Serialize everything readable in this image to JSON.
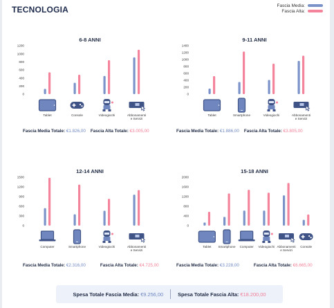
{
  "title": "TECNOLOGIA",
  "legend": {
    "media": "Fascia Media:",
    "alta": "Fascia Alta:"
  },
  "colors": {
    "media": "#7b93c9",
    "alta": "#f4849b",
    "text": "#1f2a44"
  },
  "chart_data": [
    {
      "type": "bar",
      "title": "6-8 ANNI",
      "categories": [
        "Tablet",
        "Console",
        "Videogiochi",
        "Abbonamenti e Servizi"
      ],
      "icons": [
        "tablet-icon",
        "gamepad-icon",
        "videogame-icon",
        "subscription-icon"
      ],
      "yticks": [
        0,
        200,
        400,
        600,
        800,
        1000,
        1200
      ],
      "ylim": [
        0,
        1200
      ],
      "series": [
        {
          "name": "Fascia Media",
          "values": [
            130,
            280,
            450,
            910
          ]
        },
        {
          "name": "Fascia Alta",
          "values": [
            540,
            480,
            840,
            1100
          ]
        }
      ]
    },
    {
      "type": "bar",
      "title": "9-11 ANNI",
      "categories": [
        "Tablet",
        "Smartphone",
        "Videogiochi",
        "Abbonamenti e Servizi"
      ],
      "icons": [
        "tablet-icon",
        "smartphone-icon",
        "videogame-icon",
        "subscription-icon"
      ],
      "yticks": [
        0,
        200,
        400,
        600,
        800,
        1000,
        1200,
        1400
      ],
      "ylim": [
        0,
        1400
      ],
      "series": [
        {
          "name": "Fascia Media",
          "values": [
            160,
            350,
            410,
            960
          ]
        },
        {
          "name": "Fascia Alta",
          "values": [
            520,
            1230,
            880,
            1110
          ]
        }
      ]
    },
    {
      "type": "bar",
      "title": "12-14 ANNI",
      "categories": [
        "Computer",
        "Smartphone",
        "Videogiochi",
        "Abbonamenti e Servizi"
      ],
      "icons": [
        "laptop-icon",
        "smartphone-icon",
        "videogame-icon",
        "subscription-icon"
      ],
      "yticks": [
        0,
        300,
        600,
        900,
        1200,
        1500
      ],
      "ylim": [
        0,
        1500
      ],
      "series": [
        {
          "name": "Fascia Media",
          "values": [
            540,
            350,
            460,
            960
          ]
        },
        {
          "name": "Fascia Alta",
          "values": [
            1480,
            1270,
            830,
            1100
          ]
        }
      ]
    },
    {
      "type": "bar",
      "title": "15-18 ANNI",
      "categories": [
        "Tablet",
        "Smartphone",
        "Computer",
        "Videogiochi",
        "Abbonamenti e Servizi",
        "Console"
      ],
      "icons": [
        "tablet-icon",
        "smartphone-icon",
        "laptop-icon",
        "videogame-icon",
        "subscription-icon",
        "gamepad-icon"
      ],
      "yticks": [
        0,
        400,
        800,
        1200,
        1600,
        2000
      ],
      "ylim": [
        0,
        2000
      ],
      "series": [
        {
          "name": "Fascia Media",
          "values": [
            130,
            360,
            620,
            620,
            1250,
            240
          ]
        },
        {
          "name": "Fascia Alta",
          "values": [
            570,
            1330,
            1480,
            1360,
            1760,
            460
          ]
        }
      ]
    }
  ],
  "panel_totals": [
    {
      "media_label": "Fascia Media Totale:",
      "media_value": "€1.826,00",
      "alta_label": "Fascia Alta Totale:",
      "alta_value": "€3.005,00"
    },
    {
      "media_label": "Fascia Media Totale:",
      "media_value": "€1.886,00",
      "alta_label": "Fascia Alta Totale:",
      "alta_value": "€3.805,00"
    },
    {
      "media_label": "Fascia Media Totale:",
      "media_value": "€2.316,00",
      "alta_label": "Fascia Alta Totale:",
      "alta_value": "€4.725,00"
    },
    {
      "media_label": "Fascia Media Totale:",
      "media_value": "€3.228,00",
      "alta_label": "Fascia Alta Totale:",
      "alta_value": "€6.665,00"
    }
  ],
  "summary": {
    "media_label": "Spesa Totale Fascia Media:",
    "media_value": "€9.256,00",
    "alta_label": "Spesa Totale Fascia Alta:",
    "alta_value": "€18.200,00"
  }
}
